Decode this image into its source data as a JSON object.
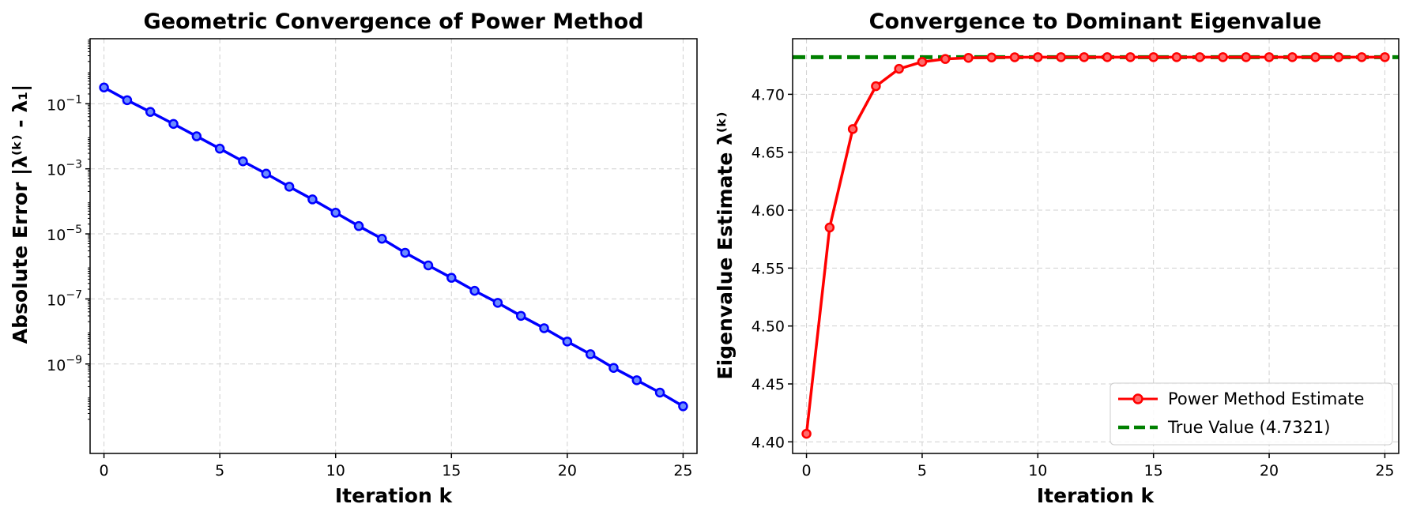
{
  "chart_data": [
    {
      "type": "line",
      "title": "Geometric Convergence of Power Method",
      "xlabel": "Iteration k",
      "ylabel": "Absolute Error |λ⁽ᵏ⁾ - λ₁|",
      "yscale": "log",
      "xlim": [
        -0.6,
        25.6
      ],
      "ylim_log10": [
        -11.75,
        1.0
      ],
      "x_ticks": [
        0,
        5,
        10,
        15,
        20,
        25
      ],
      "y_ticks": [
        {
          "base": "10",
          "exp": "−1",
          "log": -1
        },
        {
          "base": "10",
          "exp": "−3",
          "log": -3
        },
        {
          "base": "10",
          "exp": "−5",
          "log": -5
        },
        {
          "base": "10",
          "exp": "−7",
          "log": -7
        },
        {
          "base": "10",
          "exp": "−9",
          "log": -9
        }
      ],
      "grid": true,
      "series": [
        {
          "color": "#0000ff",
          "marker": "circle",
          "x": [
            0,
            1,
            2,
            3,
            4,
            5,
            6,
            7,
            8,
            9,
            10,
            11,
            12,
            13,
            14,
            15,
            16,
            17,
            18,
            19,
            20,
            21,
            22,
            23,
            24,
            25
          ],
          "y_log10": [
            -0.5,
            -0.89,
            -1.25,
            -1.62,
            -2.0,
            -2.38,
            -2.77,
            -3.15,
            -3.55,
            -3.94,
            -4.35,
            -4.76,
            -5.15,
            -5.58,
            -5.97,
            -6.35,
            -6.75,
            -7.12,
            -7.52,
            -7.9,
            -8.31,
            -8.7,
            -9.12,
            -9.5,
            -9.88,
            -10.3
          ]
        }
      ]
    },
    {
      "type": "line",
      "title": "Convergence to Dominant Eigenvalue",
      "xlabel": "Iteration k",
      "ylabel": "Eigenvalue Estimate λ⁽ᵏ⁾",
      "xlim": [
        -0.6,
        25.6
      ],
      "ylim": [
        4.39,
        4.748
      ],
      "x_ticks": [
        0,
        5,
        10,
        15,
        20,
        25
      ],
      "y_ticks": [
        "4.40",
        "4.45",
        "4.50",
        "4.55",
        "4.60",
        "4.65",
        "4.70"
      ],
      "grid": true,
      "legend": "lower-right",
      "series": [
        {
          "name": "Power Method Estimate",
          "color": "#ff0000",
          "marker": "circle",
          "x": [
            0,
            1,
            2,
            3,
            4,
            5,
            6,
            7,
            8,
            9,
            10,
            11,
            12,
            13,
            14,
            15,
            16,
            17,
            18,
            19,
            20,
            21,
            22,
            23,
            24,
            25
          ],
          "y": [
            4.407,
            4.585,
            4.67,
            4.707,
            4.722,
            4.728,
            4.7305,
            4.7315,
            4.7318,
            4.732,
            4.7321,
            4.7321,
            4.7321,
            4.7321,
            4.7321,
            4.7321,
            4.7321,
            4.7321,
            4.7321,
            4.7321,
            4.7321,
            4.7321,
            4.7321,
            4.7321,
            4.7321,
            4.7321
          ]
        },
        {
          "name": "True Value (4.7321)",
          "color": "#008000",
          "style": "dashed",
          "y": 4.7321
        }
      ]
    }
  ]
}
